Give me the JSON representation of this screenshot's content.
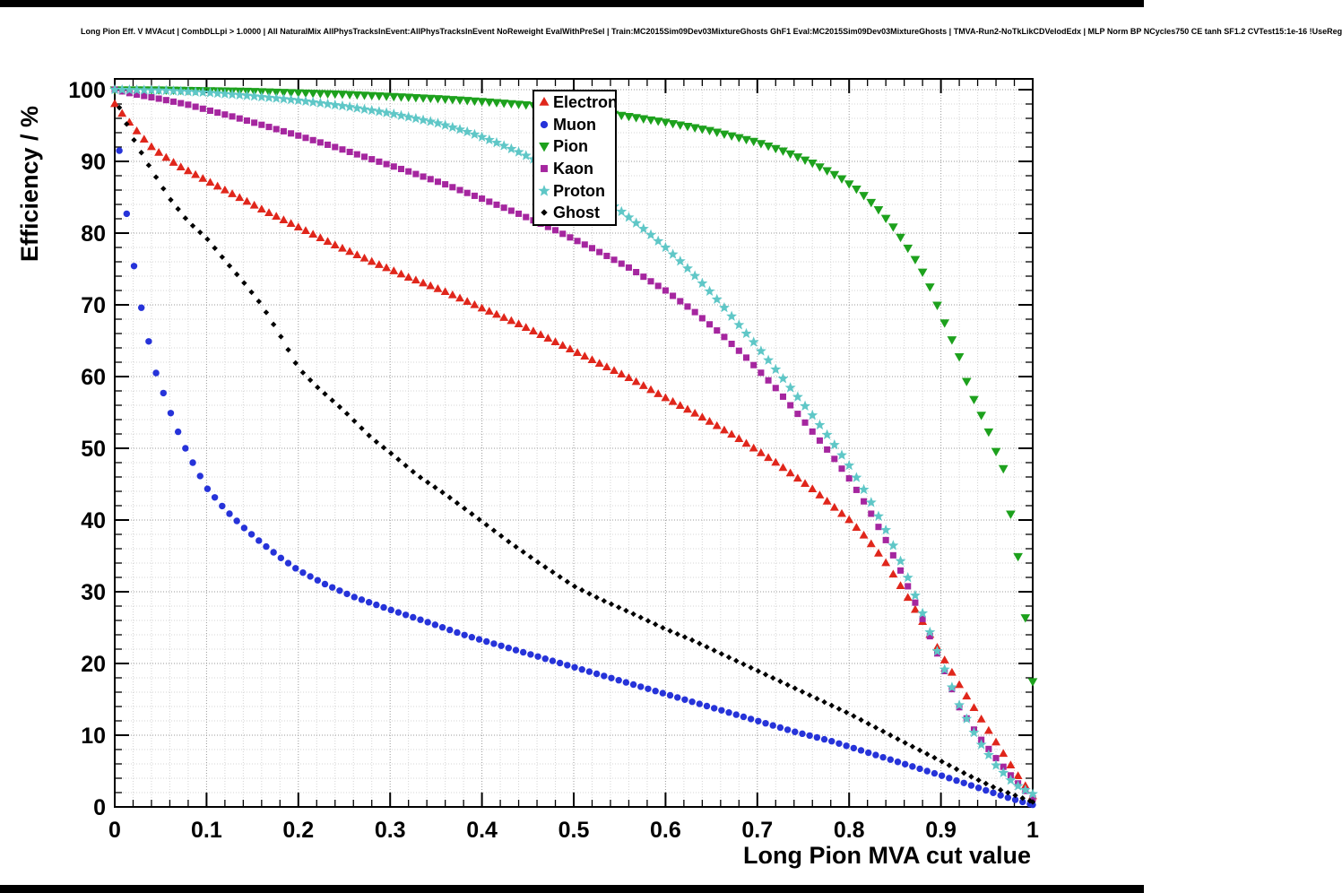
{
  "chart_data": {
    "type": "scatter",
    "title": "Long Pion Eff. V MVAcut | CombDLLpi > 1.0000 | All NaturalMix AllPhysTracksInEvent:AllPhysTracksInEvent NoReweight EvalWithPreSel | Train:MC2015Sim09Dev03MixtureGhosts GhF1 Eval:MC2015Sim09Dev03MixtureGhosts | TMVA-Run2-NoTkLikCDVelodEdx | MLP Norm BP NCycles750 CE tanh SF1.2 CVTest15:1e-16 !UseReg",
    "xlabel": "Long Pion MVA cut value",
    "ylabel": "Efficiency / %",
    "xlim": [
      0,
      1
    ],
    "ylim": [
      0,
      100
    ],
    "y_max_display": 101.5,
    "grid": true,
    "legend_position": "top-center",
    "marker_step": 0.008,
    "x_ticks": [
      {
        "v": 0.0,
        "label": "0"
      },
      {
        "v": 0.1,
        "label": "0.1"
      },
      {
        "v": 0.2,
        "label": "0.2"
      },
      {
        "v": 0.3,
        "label": "0.3"
      },
      {
        "v": 0.4,
        "label": "0.4"
      },
      {
        "v": 0.5,
        "label": "0.5"
      },
      {
        "v": 0.6,
        "label": "0.6"
      },
      {
        "v": 0.7,
        "label": "0.7"
      },
      {
        "v": 0.8,
        "label": "0.8"
      },
      {
        "v": 0.9,
        "label": "0.9"
      },
      {
        "v": 1.0,
        "label": "1"
      }
    ],
    "y_ticks": [
      {
        "v": 0,
        "label": "0"
      },
      {
        "v": 10,
        "label": "10"
      },
      {
        "v": 20,
        "label": "20"
      },
      {
        "v": 30,
        "label": "30"
      },
      {
        "v": 40,
        "label": "40"
      },
      {
        "v": 50,
        "label": "50"
      },
      {
        "v": 60,
        "label": "60"
      },
      {
        "v": 70,
        "label": "70"
      },
      {
        "v": 80,
        "label": "80"
      },
      {
        "v": 90,
        "label": "90"
      },
      {
        "v": 100,
        "label": "100"
      }
    ],
    "series": [
      {
        "name": "Electron",
        "color": "#e0261b",
        "marker": "triangle-up",
        "points": [
          [
            0.0,
            98.0
          ],
          [
            0.01,
            96.3
          ],
          [
            0.02,
            94.8
          ],
          [
            0.03,
            93.3
          ],
          [
            0.04,
            92.0
          ],
          [
            0.05,
            91.0
          ],
          [
            0.07,
            89.3
          ],
          [
            0.1,
            87.3
          ],
          [
            0.13,
            85.3
          ],
          [
            0.16,
            83.3
          ],
          [
            0.2,
            80.8
          ],
          [
            0.24,
            78.3
          ],
          [
            0.28,
            76.0
          ],
          [
            0.32,
            73.8
          ],
          [
            0.36,
            71.8
          ],
          [
            0.4,
            69.5
          ],
          [
            0.44,
            67.3
          ],
          [
            0.48,
            64.8
          ],
          [
            0.52,
            62.3
          ],
          [
            0.56,
            59.8
          ],
          [
            0.6,
            57.0
          ],
          [
            0.64,
            54.3
          ],
          [
            0.68,
            51.3
          ],
          [
            0.72,
            48.0
          ],
          [
            0.76,
            44.3
          ],
          [
            0.8,
            40.0
          ],
          [
            0.82,
            37.3
          ],
          [
            0.84,
            34.0
          ],
          [
            0.86,
            30.0
          ],
          [
            0.88,
            25.8
          ],
          [
            0.9,
            21.3
          ],
          [
            0.92,
            17.0
          ],
          [
            0.94,
            13.0
          ],
          [
            0.96,
            9.0
          ],
          [
            0.98,
            5.0
          ],
          [
            1.0,
            1.5
          ]
        ]
      },
      {
        "name": "Muon",
        "color": "#2633d9",
        "marker": "circle",
        "points": [
          [
            0.005,
            91.5
          ],
          [
            0.015,
            80.5
          ],
          [
            0.025,
            72.0
          ],
          [
            0.035,
            66.0
          ],
          [
            0.045,
            60.5
          ],
          [
            0.055,
            57.0
          ],
          [
            0.065,
            53.5
          ],
          [
            0.075,
            50.5
          ],
          [
            0.085,
            48.0
          ],
          [
            0.1,
            44.5
          ],
          [
            0.12,
            41.5
          ],
          [
            0.14,
            39.0
          ],
          [
            0.16,
            36.8
          ],
          [
            0.18,
            34.8
          ],
          [
            0.2,
            33.0
          ],
          [
            0.23,
            31.0
          ],
          [
            0.26,
            29.3
          ],
          [
            0.3,
            27.5
          ],
          [
            0.34,
            25.8
          ],
          [
            0.38,
            24.0
          ],
          [
            0.42,
            22.5
          ],
          [
            0.46,
            21.0
          ],
          [
            0.5,
            19.5
          ],
          [
            0.54,
            18.0
          ],
          [
            0.58,
            16.5
          ],
          [
            0.62,
            15.0
          ],
          [
            0.66,
            13.5
          ],
          [
            0.7,
            12.0
          ],
          [
            0.74,
            10.5
          ],
          [
            0.78,
            9.2
          ],
          [
            0.82,
            7.6
          ],
          [
            0.86,
            6.0
          ],
          [
            0.9,
            4.4
          ],
          [
            0.94,
            2.7
          ],
          [
            0.97,
            1.4
          ],
          [
            1.0,
            0.3
          ]
        ]
      },
      {
        "name": "Pion",
        "color": "#1da11d",
        "marker": "triangle-down",
        "points": [
          [
            0.0,
            100.0
          ],
          [
            0.05,
            100.0
          ],
          [
            0.1,
            99.9
          ],
          [
            0.15,
            99.8
          ],
          [
            0.2,
            99.6
          ],
          [
            0.25,
            99.4
          ],
          [
            0.3,
            99.1
          ],
          [
            0.35,
            98.8
          ],
          [
            0.4,
            98.4
          ],
          [
            0.45,
            97.9
          ],
          [
            0.5,
            97.3
          ],
          [
            0.55,
            96.5
          ],
          [
            0.6,
            95.5
          ],
          [
            0.65,
            94.3
          ],
          [
            0.7,
            92.7
          ],
          [
            0.73,
            91.4
          ],
          [
            0.76,
            89.8
          ],
          [
            0.79,
            87.8
          ],
          [
            0.81,
            86.0
          ],
          [
            0.83,
            83.6
          ],
          [
            0.85,
            80.6
          ],
          [
            0.87,
            76.8
          ],
          [
            0.885,
            73.5
          ],
          [
            0.9,
            68.7
          ],
          [
            0.92,
            62.8
          ],
          [
            0.93,
            58.5
          ],
          [
            0.95,
            53.0
          ],
          [
            0.96,
            49.6
          ],
          [
            0.97,
            46.6
          ],
          [
            0.975,
            41.6
          ],
          [
            0.985,
            34.2
          ],
          [
            1.0,
            17.5
          ]
        ]
      },
      {
        "name": "Kaon",
        "color": "#a5269f",
        "marker": "square",
        "points": [
          [
            0.0,
            100.0
          ],
          [
            0.02,
            99.4
          ],
          [
            0.05,
            98.7
          ],
          [
            0.08,
            97.9
          ],
          [
            0.1,
            97.2
          ],
          [
            0.13,
            96.2
          ],
          [
            0.16,
            95.1
          ],
          [
            0.2,
            93.6
          ],
          [
            0.24,
            92.0
          ],
          [
            0.28,
            90.3
          ],
          [
            0.32,
            88.6
          ],
          [
            0.36,
            86.8
          ],
          [
            0.4,
            84.8
          ],
          [
            0.44,
            82.7
          ],
          [
            0.48,
            80.4
          ],
          [
            0.52,
            77.9
          ],
          [
            0.56,
            75.2
          ],
          [
            0.6,
            72.0
          ],
          [
            0.63,
            69.2
          ],
          [
            0.66,
            66.0
          ],
          [
            0.69,
            62.4
          ],
          [
            0.72,
            58.4
          ],
          [
            0.75,
            53.9
          ],
          [
            0.78,
            49.2
          ],
          [
            0.8,
            45.8
          ],
          [
            0.82,
            41.8
          ],
          [
            0.84,
            37.2
          ],
          [
            0.86,
            31.9
          ],
          [
            0.88,
            26.2
          ],
          [
            0.9,
            20.2
          ],
          [
            0.92,
            13.9
          ],
          [
            0.94,
            10.0
          ],
          [
            0.96,
            6.8
          ],
          [
            0.98,
            3.8
          ],
          [
            1.0,
            1.2
          ]
        ]
      },
      {
        "name": "Proton",
        "color": "#5fc7c7",
        "marker": "star",
        "points": [
          [
            0.0,
            100.0
          ],
          [
            0.05,
            99.9
          ],
          [
            0.1,
            99.6
          ],
          [
            0.15,
            99.1
          ],
          [
            0.2,
            98.5
          ],
          [
            0.25,
            97.7
          ],
          [
            0.3,
            96.7
          ],
          [
            0.35,
            95.4
          ],
          [
            0.38,
            94.3
          ],
          [
            0.4,
            93.4
          ],
          [
            0.42,
            92.4
          ],
          [
            0.44,
            91.3
          ],
          [
            0.48,
            88.8
          ],
          [
            0.52,
            85.8
          ],
          [
            0.55,
            83.2
          ],
          [
            0.58,
            80.2
          ],
          [
            0.6,
            78.0
          ],
          [
            0.62,
            75.6
          ],
          [
            0.64,
            73.0
          ],
          [
            0.66,
            70.2
          ],
          [
            0.68,
            67.2
          ],
          [
            0.7,
            64.2
          ],
          [
            0.72,
            61.0
          ],
          [
            0.74,
            57.8
          ],
          [
            0.76,
            54.6
          ],
          [
            0.78,
            51.2
          ],
          [
            0.8,
            47.6
          ],
          [
            0.82,
            43.4
          ],
          [
            0.84,
            38.6
          ],
          [
            0.86,
            33.2
          ],
          [
            0.88,
            27.0
          ],
          [
            0.9,
            20.4
          ],
          [
            0.92,
            14.2
          ],
          [
            0.94,
            9.4
          ],
          [
            0.96,
            5.8
          ],
          [
            0.98,
            3.2
          ],
          [
            1.0,
            1.8
          ]
        ]
      },
      {
        "name": "Ghost",
        "color": "#000000",
        "marker": "diamond",
        "points": [
          [
            0.005,
            97.5
          ],
          [
            0.02,
            93.2
          ],
          [
            0.04,
            88.8
          ],
          [
            0.06,
            84.8
          ],
          [
            0.08,
            81.6
          ],
          [
            0.1,
            79.3
          ],
          [
            0.12,
            76.2
          ],
          [
            0.14,
            73.2
          ],
          [
            0.16,
            70.0
          ],
          [
            0.18,
            65.8
          ],
          [
            0.2,
            61.2
          ],
          [
            0.22,
            58.6
          ],
          [
            0.25,
            55.2
          ],
          [
            0.28,
            51.4
          ],
          [
            0.3,
            49.4
          ],
          [
            0.33,
            46.2
          ],
          [
            0.36,
            43.6
          ],
          [
            0.4,
            39.8
          ],
          [
            0.43,
            36.9
          ],
          [
            0.46,
            34.2
          ],
          [
            0.5,
            30.8
          ],
          [
            0.53,
            28.9
          ],
          [
            0.56,
            27.2
          ],
          [
            0.6,
            24.8
          ],
          [
            0.63,
            23.2
          ],
          [
            0.66,
            21.4
          ],
          [
            0.7,
            19.0
          ],
          [
            0.73,
            17.2
          ],
          [
            0.76,
            15.4
          ],
          [
            0.8,
            13.0
          ],
          [
            0.83,
            11.0
          ],
          [
            0.86,
            9.0
          ],
          [
            0.9,
            6.4
          ],
          [
            0.93,
            4.4
          ],
          [
            0.96,
            2.6
          ],
          [
            1.0,
            0.7
          ]
        ]
      }
    ]
  }
}
